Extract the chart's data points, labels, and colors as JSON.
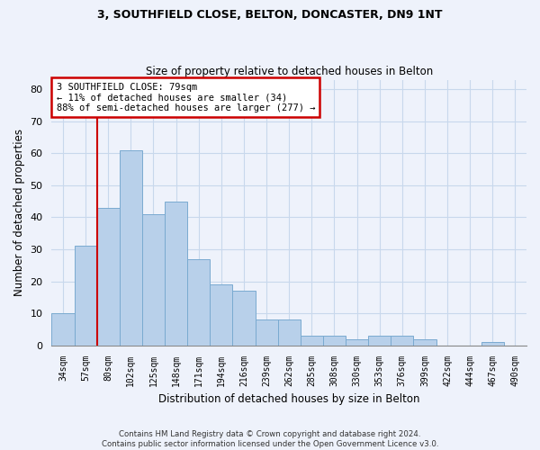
{
  "title1": "3, SOUTHFIELD CLOSE, BELTON, DONCASTER, DN9 1NT",
  "title2": "Size of property relative to detached houses in Belton",
  "xlabel": "Distribution of detached houses by size in Belton",
  "ylabel": "Number of detached properties",
  "footer1": "Contains HM Land Registry data © Crown copyright and database right 2024.",
  "footer2": "Contains public sector information licensed under the Open Government Licence v3.0.",
  "bin_labels": [
    "34sqm",
    "57sqm",
    "80sqm",
    "102sqm",
    "125sqm",
    "148sqm",
    "171sqm",
    "194sqm",
    "216sqm",
    "239sqm",
    "262sqm",
    "285sqm",
    "308sqm",
    "330sqm",
    "353sqm",
    "376sqm",
    "399sqm",
    "422sqm",
    "444sqm",
    "467sqm",
    "490sqm"
  ],
  "bar_values": [
    10,
    31,
    43,
    61,
    41,
    45,
    27,
    19,
    17,
    8,
    8,
    3,
    3,
    2,
    3,
    3,
    2,
    0,
    0,
    1,
    0
  ],
  "bar_color": "#b8d0ea",
  "bar_edge_color": "#7aaad0",
  "grid_color": "#c8d8ec",
  "annotation_line1": "3 SOUTHFIELD CLOSE: 79sqm",
  "annotation_line2": "← 11% of detached houses are smaller (34)",
  "annotation_line3": "88% of semi-detached houses are larger (277) →",
  "annotation_box_edge_color": "#cc0000",
  "red_line_bin_index": 2,
  "ylim_max": 83,
  "yticks": [
    0,
    10,
    20,
    30,
    40,
    50,
    60,
    70,
    80
  ],
  "background_color": "#eef2fb",
  "figwidth": 6.0,
  "figheight": 5.0,
  "dpi": 100
}
